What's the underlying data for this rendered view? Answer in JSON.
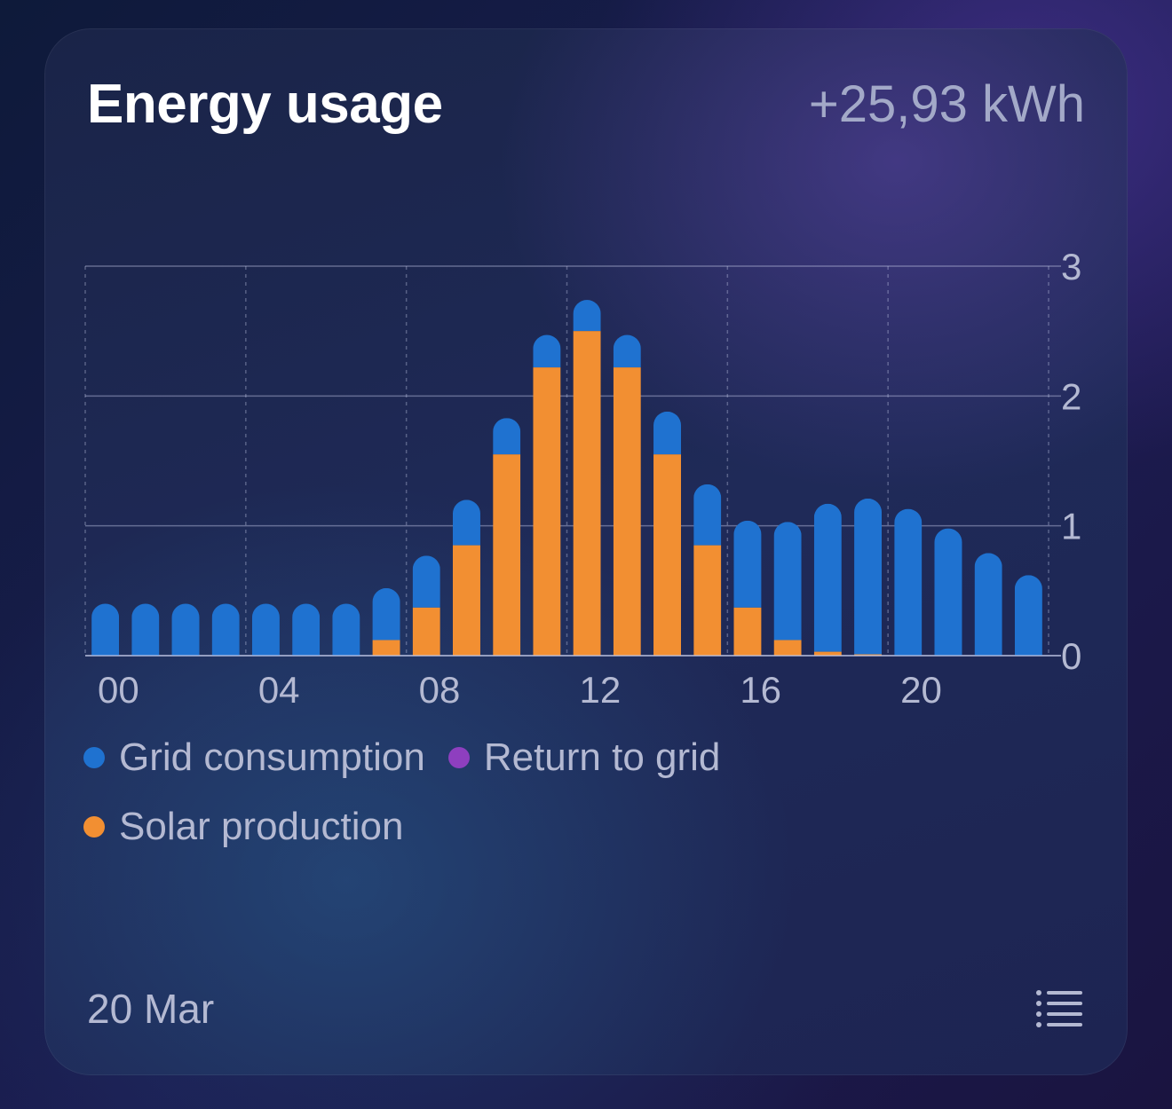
{
  "card": {
    "title": "Energy usage",
    "total": "+25,93 kWh",
    "date": "20 Mar",
    "list_button_icon": "list-icon"
  },
  "legend": [
    {
      "label": "Grid consumption",
      "color": "#1f72d0"
    },
    {
      "label": "Return to grid",
      "color": "#8e3fbf"
    },
    {
      "label": "Solar production",
      "color": "#f28f32"
    }
  ],
  "chart_data": {
    "type": "bar",
    "stacked": true,
    "categories": [
      "00",
      "01",
      "02",
      "03",
      "04",
      "05",
      "06",
      "07",
      "08",
      "09",
      "10",
      "11",
      "12",
      "13",
      "14",
      "15",
      "16",
      "17",
      "18",
      "19",
      "20",
      "21",
      "22",
      "23"
    ],
    "x_tick_labels": [
      "00",
      "04",
      "08",
      "12",
      "16",
      "20"
    ],
    "y_ticks": [
      "0",
      "1",
      "2",
      "3"
    ],
    "ylim": [
      0,
      3
    ],
    "y_axis_position": "right",
    "grid": true,
    "legend_position": "bottom",
    "series": [
      {
        "name": "Solar production",
        "color": "#f28f32",
        "values": [
          0,
          0,
          0,
          0,
          0,
          0,
          0,
          0.12,
          0.37,
          0.85,
          1.55,
          2.22,
          2.5,
          2.22,
          1.55,
          0.85,
          0.37,
          0.12,
          0.03,
          0.01,
          0,
          0,
          0,
          0
        ]
      },
      {
        "name": "Grid consumption",
        "color": "#1f72d0",
        "values": [
          0.4,
          0.4,
          0.4,
          0.4,
          0.4,
          0.4,
          0.4,
          0.4,
          0.4,
          0.35,
          0.28,
          0.25,
          0.24,
          0.25,
          0.33,
          0.47,
          0.67,
          0.91,
          1.14,
          1.2,
          1.13,
          0.98,
          0.79,
          0.62
        ]
      },
      {
        "name": "Return to grid",
        "color": "#8e3fbf",
        "values": [
          0,
          0,
          0,
          0,
          0,
          0,
          0,
          0,
          0,
          0,
          0,
          0,
          0,
          0,
          0,
          0,
          0,
          0,
          0,
          0,
          0,
          0,
          0,
          0
        ]
      }
    ]
  }
}
